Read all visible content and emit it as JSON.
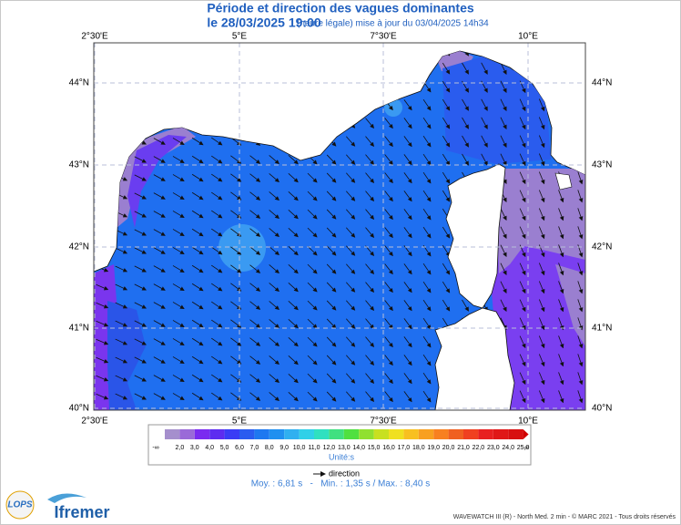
{
  "header": {
    "title": "Période et direction des vagues dominantes",
    "date": "le 28/03/2025 19:00",
    "note": "(heure légale) mise à jour du 03/04/2025 14h34"
  },
  "map": {
    "lon_labels": [
      "2°30'E",
      "5°E",
      "7°30'E",
      "10°E"
    ],
    "lat_labels": [
      "44°N",
      "43°N",
      "42°N",
      "41°N",
      "40°N"
    ]
  },
  "legend": {
    "scale_labels": [
      "-∞",
      "2,0",
      "3,0",
      "4,0",
      "5,0",
      "6,0",
      "7,0",
      "8,0",
      "9,0",
      "10,0",
      "11,0",
      "12,0",
      "13,0",
      "14,0",
      "15,0",
      "16,0",
      "17,0",
      "18,0",
      "19,0",
      "20,0",
      "21,0",
      "22,0",
      "23,0",
      "24,0",
      "25,0",
      "∞"
    ],
    "unit": "Unité:s",
    "arrow_label": "direction"
  },
  "stats": "Moy. : 6,81 s   -   Min. : 1,35 s / Max. : 8,40 s",
  "footer": {
    "credit": "WAVEWATCH III (R) - North Med. 2 min - © MARC 2021 - Tous droits réservés",
    "logo_lops": "LOPS",
    "logo_ifremer": "Ifremer"
  }
}
